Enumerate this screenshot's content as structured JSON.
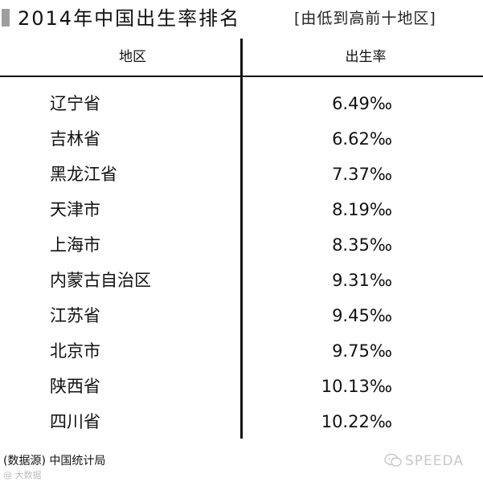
{
  "title": {
    "main": "2014年中国出生率排名",
    "sub": "[由低到高前十地区]"
  },
  "chart_data": {
    "type": "table",
    "title": "2014年中国出生率排名",
    "subtitle": "[由低到高前十地区]",
    "columns": [
      "地区",
      "出生率"
    ],
    "rows": [
      {
        "region": "辽宁省",
        "rate": "6.49‰"
      },
      {
        "region": "吉林省",
        "rate": "6.62‰"
      },
      {
        "region": "黑龙江省",
        "rate": "7.37‰"
      },
      {
        "region": "天津市",
        "rate": "8.19‰"
      },
      {
        "region": "上海市",
        "rate": "8.35‰"
      },
      {
        "region": "内蒙古自治区",
        "rate": "9.31‰"
      },
      {
        "region": "江苏省",
        "rate": "9.45‰"
      },
      {
        "region": "北京市",
        "rate": "9.75‰"
      },
      {
        "region": "陕西省",
        "rate": "10.13‰"
      },
      {
        "region": "四川省",
        "rate": "10.22‰"
      }
    ],
    "values_permille": [
      6.49,
      6.62,
      7.37,
      8.19,
      8.35,
      9.31,
      9.45,
      9.75,
      10.13,
      10.22
    ],
    "unit": "‰"
  },
  "source": "(数据源) 中国统计局",
  "watermark": {
    "left": "@ 大数据",
    "right": "SPEEDA"
  },
  "colors": {
    "text": "#111111",
    "accent_bar": "#9e9e9e",
    "watermark": "#c7c7c7"
  }
}
